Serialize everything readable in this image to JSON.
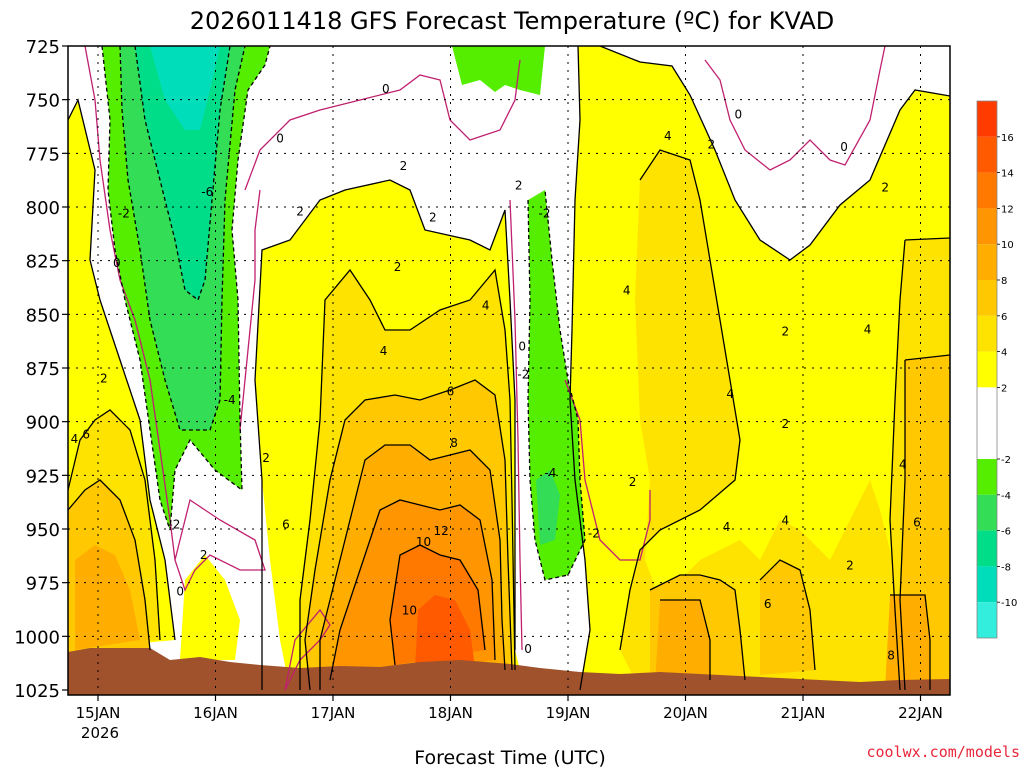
{
  "chart_data": {
    "type": "heatmap",
    "title": "2026011418 GFS Forecast Temperature (ºC) for KVAD",
    "xlabel": "Forecast Time (UTC)",
    "ylabel": "",
    "credit": "coolwx.com/models",
    "x_ticks": [
      "15JAN",
      "16JAN",
      "17JAN",
      "18JAN",
      "19JAN",
      "20JAN",
      "21JAN",
      "22JAN"
    ],
    "x_year": "2026",
    "y_ticks": [
      "725",
      "750",
      "775",
      "800",
      "825",
      "850",
      "875",
      "900",
      "925",
      "950",
      "975",
      "1000",
      "1025"
    ],
    "ylim": [
      1025,
      725
    ],
    "colorbar": {
      "ticks": [
        "16",
        "14",
        "12",
        "10",
        "8",
        "6",
        "4",
        "2",
        "-2",
        "-4",
        "-6",
        "-8",
        "-10"
      ],
      "bins": [
        {
          "min": 16,
          "max": 18,
          "color": "#ff3b00"
        },
        {
          "min": 14,
          "max": 16,
          "color": "#ff5a00"
        },
        {
          "min": 12,
          "max": 14,
          "color": "#ff7800"
        },
        {
          "min": 10,
          "max": 12,
          "color": "#ff9500"
        },
        {
          "min": 8,
          "max": 10,
          "color": "#ffae00"
        },
        {
          "min": 6,
          "max": 8,
          "color": "#ffc800"
        },
        {
          "min": 4,
          "max": 6,
          "color": "#ffe300"
        },
        {
          "min": 2,
          "max": 4,
          "color": "#ffff00"
        },
        {
          "min": -2,
          "max": 2,
          "color": "#ffffff"
        },
        {
          "min": -4,
          "max": -2,
          "color": "#55ee00"
        },
        {
          "min": -6,
          "max": -4,
          "color": "#33dd55"
        },
        {
          "min": -8,
          "max": -6,
          "color": "#00dd88"
        },
        {
          "min": -10,
          "max": -8,
          "color": "#00ddbb"
        },
        {
          "min": -12,
          "max": -10,
          "color": "#33eedd"
        }
      ]
    },
    "contour_labels": [
      {
        "text": "0",
        "day": 0.16,
        "p": 826
      },
      {
        "text": "-2",
        "day": 0.22,
        "p": 803
      },
      {
        "text": "2",
        "day": 0.05,
        "p": 880
      },
      {
        "text": "4",
        "day": -0.2,
        "p": 908
      },
      {
        "text": "6",
        "day": -0.1,
        "p": 906
      },
      {
        "text": "-6",
        "day": 0.93,
        "p": 793
      },
      {
        "text": "-4",
        "day": 1.12,
        "p": 890
      },
      {
        "text": "-2",
        "day": 0.65,
        "p": 948
      },
      {
        "text": "0",
        "day": 0.7,
        "p": 979
      },
      {
        "text": "2",
        "day": 0.9,
        "p": 962
      },
      {
        "text": "0",
        "day": 1.55,
        "p": 768
      },
      {
        "text": "2",
        "day": 1.72,
        "p": 802
      },
      {
        "text": "0",
        "day": 2.45,
        "p": 745
      },
      {
        "text": "2",
        "day": 2.6,
        "p": 781
      },
      {
        "text": "2",
        "day": 2.85,
        "p": 805
      },
      {
        "text": "2",
        "day": 2.55,
        "p": 828
      },
      {
        "text": "2",
        "day": 1.43,
        "p": 917
      },
      {
        "text": "6",
        "day": 1.6,
        "p": 948
      },
      {
        "text": "4",
        "day": 2.43,
        "p": 867
      },
      {
        "text": "4",
        "day": 3.3,
        "p": 846
      },
      {
        "text": "6",
        "day": 3.0,
        "p": 886
      },
      {
        "text": "8",
        "day": 3.03,
        "p": 910
      },
      {
        "text": "10",
        "day": 2.77,
        "p": 956
      },
      {
        "text": "12",
        "day": 2.92,
        "p": 951
      },
      {
        "text": "10",
        "day": 2.65,
        "p": 988
      },
      {
        "text": "2",
        "day": 3.58,
        "p": 790
      },
      {
        "text": "-2",
        "day": 3.8,
        "p": 803
      },
      {
        "text": "0",
        "day": 3.61,
        "p": 865
      },
      {
        "text": "-2",
        "day": 3.62,
        "p": 878
      },
      {
        "text": "-4",
        "day": 3.85,
        "p": 924
      },
      {
        "text": "-2",
        "day": 4.22,
        "p": 952
      },
      {
        "text": "0",
        "day": 3.66,
        "p": 1006
      },
      {
        "text": "2",
        "day": 4.55,
        "p": 928
      },
      {
        "text": "4",
        "day": 4.5,
        "p": 839
      },
      {
        "text": "4",
        "day": 4.85,
        "p": 767
      },
      {
        "text": "2",
        "day": 5.22,
        "p": 771
      },
      {
        "text": "0",
        "day": 5.45,
        "p": 757
      },
      {
        "text": "0",
        "day": 6.35,
        "p": 772
      },
      {
        "text": "2",
        "day": 6.7,
        "p": 791
      },
      {
        "text": "4",
        "day": 5.38,
        "p": 887
      },
      {
        "text": "4",
        "day": 5.35,
        "p": 949
      },
      {
        "text": "2",
        "day": 5.85,
        "p": 858
      },
      {
        "text": "2",
        "day": 5.85,
        "p": 901
      },
      {
        "text": "4",
        "day": 6.55,
        "p": 857
      },
      {
        "text": "4",
        "day": 5.85,
        "p": 946
      },
      {
        "text": "6",
        "day": 5.7,
        "p": 985
      },
      {
        "text": "2",
        "day": 6.4,
        "p": 967
      },
      {
        "text": "4",
        "day": 6.85,
        "p": 920
      },
      {
        "text": "6",
        "day": 6.97,
        "p": 947
      },
      {
        "text": "8",
        "day": 6.75,
        "p": 1009
      }
    ]
  }
}
